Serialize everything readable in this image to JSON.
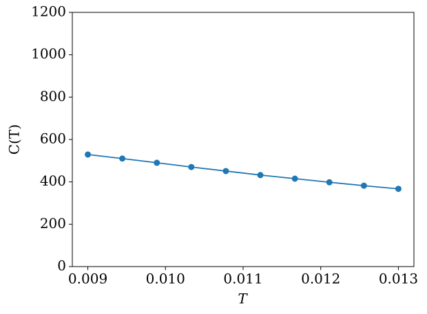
{
  "chart_data": {
    "type": "line",
    "xlabel": "T",
    "ylabel": "C(T)",
    "x": [
      0.009,
      0.009444,
      0.009889,
      0.010333,
      0.010778,
      0.011222,
      0.011667,
      0.012111,
      0.012556,
      0.013
    ],
    "series": [
      {
        "color": "#1f77b4",
        "values": [
          529,
          510,
          490,
          470,
          451,
          432,
          415,
          398,
          382,
          367
        ]
      }
    ],
    "xlim": [
      0.0088,
      0.0132
    ],
    "xticks": [
      0.009,
      {
        "value": 0.01,
        "label": "0.010"
      },
      0.011,
      0.012,
      0.013
    ],
    "ylim": [
      0,
      1200
    ],
    "yticks": [
      0,
      200,
      400,
      600,
      800,
      1000,
      1200
    ],
    "markers": true
  }
}
